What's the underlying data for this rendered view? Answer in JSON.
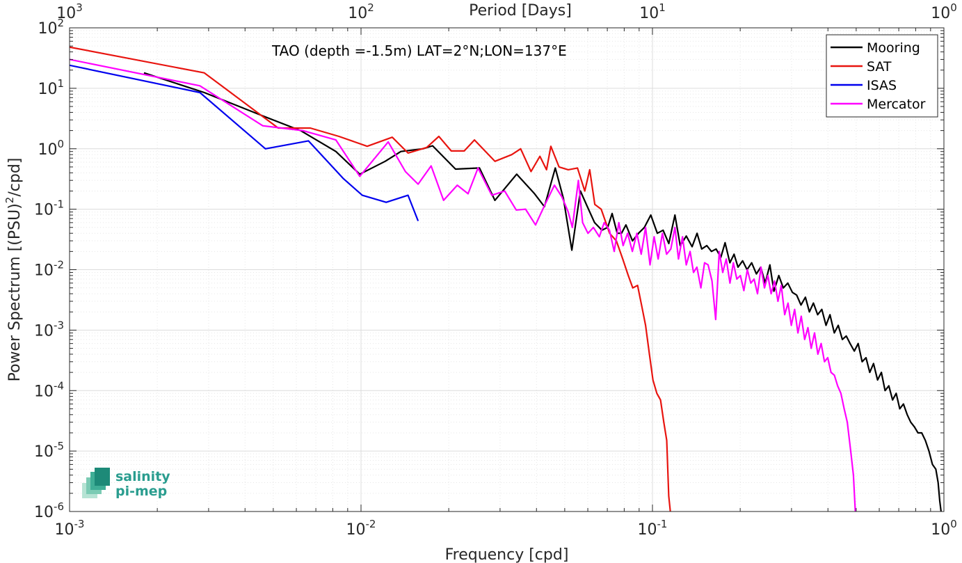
{
  "chart_data": {
    "type": "line",
    "x_scale": "log",
    "y_scale": "log",
    "xlim": [
      0.001,
      1
    ],
    "ylim": [
      1e-06,
      100
    ],
    "grid": true,
    "legend_position": "top-right",
    "xlabel": "Frequency [cpd]",
    "ylabel_parts": {
      "pre": "Power Spectrum [(PSU)",
      "sup": "2",
      "post": "/cpd]"
    },
    "top_axis_label": "Period [Days]",
    "annotation": "TAO (depth =-1.5m) LAT=2°N;LON=137°E",
    "x_ticks": [
      {
        "value": 0.001,
        "base": "10",
        "exp": "-3"
      },
      {
        "value": 0.01,
        "base": "10",
        "exp": "-2"
      },
      {
        "value": 0.1,
        "base": "10",
        "exp": "-1"
      },
      {
        "value": 1,
        "base": "10",
        "exp": "0"
      }
    ],
    "top_ticks": [
      {
        "value": 0.001,
        "base": "10",
        "exp": "3"
      },
      {
        "value": 0.01,
        "base": "10",
        "exp": "2"
      },
      {
        "value": 0.1,
        "base": "10",
        "exp": "1"
      },
      {
        "value": 1,
        "base": "10",
        "exp": "0"
      }
    ],
    "y_ticks": [
      {
        "value": 100,
        "base": "10",
        "exp": "2"
      },
      {
        "value": 10,
        "base": "10",
        "exp": "1"
      },
      {
        "value": 1,
        "base": "10",
        "exp": "0"
      },
      {
        "value": 0.1,
        "base": "10",
        "exp": "-1"
      },
      {
        "value": 0.01,
        "base": "10",
        "exp": "-2"
      },
      {
        "value": 0.001,
        "base": "10",
        "exp": "-3"
      },
      {
        "value": 0.0001,
        "base": "10",
        "exp": "-4"
      },
      {
        "value": 1e-05,
        "base": "10",
        "exp": "-5"
      },
      {
        "value": 1e-06,
        "base": "10",
        "exp": "-6"
      }
    ],
    "series": [
      {
        "name": "Mooring",
        "color": "#000000",
        "points": [
          [
            0.0018,
            18
          ],
          [
            0.0029,
            8.5
          ],
          [
            0.0046,
            3.5
          ],
          [
            0.0062,
            2.0
          ],
          [
            0.0082,
            0.9
          ],
          [
            0.0099,
            0.38
          ],
          [
            0.0121,
            0.62
          ],
          [
            0.0137,
            0.9
          ],
          [
            0.0163,
            1.0
          ],
          [
            0.0176,
            1.12
          ],
          [
            0.0211,
            0.46
          ],
          [
            0.0255,
            0.48
          ],
          [
            0.0288,
            0.14
          ],
          [
            0.0342,
            0.38
          ],
          [
            0.0394,
            0.18
          ],
          [
            0.0426,
            0.11
          ],
          [
            0.0464,
            0.48
          ],
          [
            0.0495,
            0.15
          ],
          [
            0.0529,
            0.021
          ],
          [
            0.0566,
            0.2
          ],
          [
            0.0598,
            0.11
          ],
          [
            0.0633,
            0.06
          ],
          [
            0.0671,
            0.045
          ],
          [
            0.0702,
            0.05
          ],
          [
            0.0727,
            0.085
          ],
          [
            0.0757,
            0.04
          ],
          [
            0.0783,
            0.04
          ],
          [
            0.0811,
            0.055
          ],
          [
            0.0854,
            0.03
          ],
          [
            0.0896,
            0.04
          ],
          [
            0.0938,
            0.05
          ],
          [
            0.0987,
            0.08
          ],
          [
            0.1039,
            0.04
          ],
          [
            0.1088,
            0.045
          ],
          [
            0.1138,
            0.027
          ],
          [
            0.1194,
            0.08
          ],
          [
            0.1245,
            0.025
          ],
          [
            0.1306,
            0.036
          ],
          [
            0.1368,
            0.024
          ],
          [
            0.1422,
            0.04
          ],
          [
            0.1476,
            0.022
          ],
          [
            0.1536,
            0.025
          ],
          [
            0.1594,
            0.02
          ],
          [
            0.1653,
            0.022
          ],
          [
            0.1716,
            0.016
          ],
          [
            0.1775,
            0.028
          ],
          [
            0.1843,
            0.013
          ],
          [
            0.1905,
            0.018
          ],
          [
            0.1966,
            0.011
          ],
          [
            0.2038,
            0.014
          ],
          [
            0.2112,
            0.01
          ],
          [
            0.2189,
            0.013
          ],
          [
            0.2273,
            0.0085
          ],
          [
            0.2353,
            0.011
          ],
          [
            0.2437,
            0.006
          ],
          [
            0.2529,
            0.012
          ],
          [
            0.2611,
            0.0044
          ],
          [
            0.2713,
            0.008
          ],
          [
            0.2812,
            0.005
          ],
          [
            0.2913,
            0.006
          ],
          [
            0.3021,
            0.0042
          ],
          [
            0.3125,
            0.0038
          ],
          [
            0.3233,
            0.0026
          ],
          [
            0.3348,
            0.0035
          ],
          [
            0.3455,
            0.002
          ],
          [
            0.3566,
            0.0028
          ],
          [
            0.3689,
            0.0018
          ],
          [
            0.3812,
            0.0022
          ],
          [
            0.3939,
            0.0012
          ],
          [
            0.4064,
            0.0018
          ],
          [
            0.4207,
            0.0009
          ],
          [
            0.4339,
            0.0012
          ],
          [
            0.4483,
            0.0007
          ],
          [
            0.4623,
            0.0008
          ],
          [
            0.4766,
            0.0006
          ],
          [
            0.4928,
            0.00045
          ],
          [
            0.5079,
            0.0006
          ],
          [
            0.5241,
            0.0003
          ],
          [
            0.5403,
            0.00035
          ],
          [
            0.5566,
            0.0002
          ],
          [
            0.5733,
            0.00028
          ],
          [
            0.5921,
            0.00015
          ],
          [
            0.6103,
            0.0002
          ],
          [
            0.6283,
            0.0001
          ],
          [
            0.6472,
            0.00012
          ],
          [
            0.6665,
            7e-05
          ],
          [
            0.6859,
            9e-05
          ],
          [
            0.7055,
            5e-05
          ],
          [
            0.7263,
            6e-05
          ],
          [
            0.7483,
            4e-05
          ],
          [
            0.7696,
            3e-05
          ],
          [
            0.7925,
            2.5e-05
          ],
          [
            0.8145,
            2e-05
          ],
          [
            0.8391,
            2e-05
          ],
          [
            0.8635,
            1.5e-05
          ],
          [
            0.8885,
            1e-05
          ],
          [
            0.9134,
            6e-06
          ],
          [
            0.9384,
            5e-06
          ],
          [
            0.9553,
            3e-06
          ],
          [
            0.9675,
            1.5e-06
          ],
          [
            0.9779,
            1e-06
          ]
        ]
      },
      {
        "name": "SAT",
        "color": "#e8140f",
        "points": [
          [
            0.001,
            48
          ],
          [
            0.0029,
            18
          ],
          [
            0.0052,
            2.2
          ],
          [
            0.0067,
            2.2
          ],
          [
            0.0084,
            1.6
          ],
          [
            0.0105,
            1.1
          ],
          [
            0.0128,
            1.55
          ],
          [
            0.0145,
            0.85
          ],
          [
            0.0168,
            1.05
          ],
          [
            0.0185,
            1.6
          ],
          [
            0.0204,
            0.92
          ],
          [
            0.0226,
            0.92
          ],
          [
            0.0245,
            1.4
          ],
          [
            0.0288,
            0.62
          ],
          [
            0.0329,
            0.8
          ],
          [
            0.0353,
            1.0
          ],
          [
            0.0383,
            0.42
          ],
          [
            0.0411,
            0.75
          ],
          [
            0.0433,
            0.45
          ],
          [
            0.0448,
            1.1
          ],
          [
            0.0478,
            0.5
          ],
          [
            0.0514,
            0.45
          ],
          [
            0.0553,
            0.48
          ],
          [
            0.0586,
            0.2
          ],
          [
            0.0609,
            0.45
          ],
          [
            0.0634,
            0.12
          ],
          [
            0.0667,
            0.1
          ],
          [
            0.0713,
            0.04
          ],
          [
            0.0752,
            0.03
          ],
          [
            0.0791,
            0.015
          ],
          [
            0.0826,
            0.008
          ],
          [
            0.0856,
            0.005
          ],
          [
            0.0889,
            0.0055
          ],
          [
            0.0919,
            0.0025
          ],
          [
            0.0947,
            0.0012
          ],
          [
            0.0976,
            0.0004
          ],
          [
            0.1004,
            0.00015
          ],
          [
            0.1035,
            9e-05
          ],
          [
            0.1066,
            7e-05
          ],
          [
            0.1094,
            3e-05
          ],
          [
            0.1119,
            1.5e-05
          ],
          [
            0.1137,
            1.8e-06
          ],
          [
            0.1152,
            1e-06
          ]
        ]
      },
      {
        "name": "ISAS",
        "color": "#0000ee",
        "points": [
          [
            0.001,
            24
          ],
          [
            0.0028,
            8.5
          ],
          [
            0.0047,
            1.0
          ],
          [
            0.0066,
            1.35
          ],
          [
            0.0087,
            0.32
          ],
          [
            0.0101,
            0.17
          ],
          [
            0.0122,
            0.13
          ],
          [
            0.0145,
            0.17
          ],
          [
            0.0157,
            0.064
          ]
        ]
      },
      {
        "name": "Mercator",
        "color": "#ff00ff",
        "points": [
          [
            0.001,
            30
          ],
          [
            0.0028,
            11
          ],
          [
            0.0046,
            2.4
          ],
          [
            0.0063,
            2.0
          ],
          [
            0.0082,
            1.4
          ],
          [
            0.0099,
            0.35
          ],
          [
            0.0124,
            1.3
          ],
          [
            0.0142,
            0.42
          ],
          [
            0.0157,
            0.26
          ],
          [
            0.0174,
            0.52
          ],
          [
            0.0192,
            0.14
          ],
          [
            0.0214,
            0.25
          ],
          [
            0.0233,
            0.18
          ],
          [
            0.0252,
            0.48
          ],
          [
            0.0281,
            0.17
          ],
          [
            0.0311,
            0.2
          ],
          [
            0.0341,
            0.097
          ],
          [
            0.0367,
            0.1
          ],
          [
            0.0397,
            0.055
          ],
          [
            0.0428,
            0.12
          ],
          [
            0.0461,
            0.25
          ],
          [
            0.0489,
            0.16
          ],
          [
            0.0514,
            0.09
          ],
          [
            0.0531,
            0.05
          ],
          [
            0.0557,
            0.3
          ],
          [
            0.0576,
            0.06
          ],
          [
            0.0601,
            0.04
          ],
          [
            0.0627,
            0.05
          ],
          [
            0.0657,
            0.035
          ],
          [
            0.0683,
            0.06
          ],
          [
            0.0712,
            0.045
          ],
          [
            0.0739,
            0.02
          ],
          [
            0.0767,
            0.06
          ],
          [
            0.0793,
            0.025
          ],
          [
            0.0822,
            0.04
          ],
          [
            0.0853,
            0.02
          ],
          [
            0.0884,
            0.04
          ],
          [
            0.0915,
            0.018
          ],
          [
            0.0947,
            0.05
          ],
          [
            0.0981,
            0.012
          ],
          [
            0.1013,
            0.035
          ],
          [
            0.1046,
            0.015
          ],
          [
            0.1082,
            0.04
          ],
          [
            0.1118,
            0.018
          ],
          [
            0.1156,
            0.022
          ],
          [
            0.1194,
            0.05
          ],
          [
            0.1228,
            0.015
          ],
          [
            0.1268,
            0.035
          ],
          [
            0.1306,
            0.012
          ],
          [
            0.1346,
            0.02
          ],
          [
            0.1383,
            0.009
          ],
          [
            0.1421,
            0.011
          ],
          [
            0.1466,
            0.005
          ],
          [
            0.1509,
            0.013
          ],
          [
            0.1552,
            0.012
          ],
          [
            0.1601,
            0.0065
          ],
          [
            0.1648,
            0.0015
          ],
          [
            0.1695,
            0.02
          ],
          [
            0.1742,
            0.009
          ],
          [
            0.1792,
            0.015
          ],
          [
            0.1844,
            0.006
          ],
          [
            0.1895,
            0.013
          ],
          [
            0.1948,
            0.007
          ],
          [
            0.2003,
            0.008
          ],
          [
            0.2059,
            0.0045
          ],
          [
            0.2116,
            0.01
          ],
          [
            0.2175,
            0.006
          ],
          [
            0.2232,
            0.007
          ],
          [
            0.2293,
            0.004
          ],
          [
            0.2357,
            0.011
          ],
          [
            0.2422,
            0.005
          ],
          [
            0.2488,
            0.008
          ],
          [
            0.2554,
            0.004
          ],
          [
            0.2623,
            0.0065
          ],
          [
            0.2695,
            0.003
          ],
          [
            0.2767,
            0.0055
          ],
          [
            0.2842,
            0.0018
          ],
          [
            0.2919,
            0.0028
          ],
          [
            0.2995,
            0.0012
          ],
          [
            0.3075,
            0.0022
          ],
          [
            0.3156,
            0.0009
          ],
          [
            0.3239,
            0.0017
          ],
          [
            0.3328,
            0.0007
          ],
          [
            0.3416,
            0.0011
          ],
          [
            0.3505,
            0.0005
          ],
          [
            0.3598,
            0.0009
          ],
          [
            0.3694,
            0.0004
          ],
          [
            0.3791,
            0.0006
          ],
          [
            0.3893,
            0.0003
          ],
          [
            0.3995,
            0.00035
          ],
          [
            0.4098,
            0.0002
          ],
          [
            0.4209,
            0.00018
          ],
          [
            0.4318,
            0.00012
          ],
          [
            0.4432,
            9e-05
          ],
          [
            0.4547,
            5e-05
          ],
          [
            0.4662,
            3e-05
          ],
          [
            0.4788,
            1e-05
          ],
          [
            0.4891,
            4e-06
          ],
          [
            0.4965,
            1e-06
          ]
        ]
      }
    ]
  },
  "logo": {
    "line1": "salinity",
    "line2": "pi-mep"
  }
}
